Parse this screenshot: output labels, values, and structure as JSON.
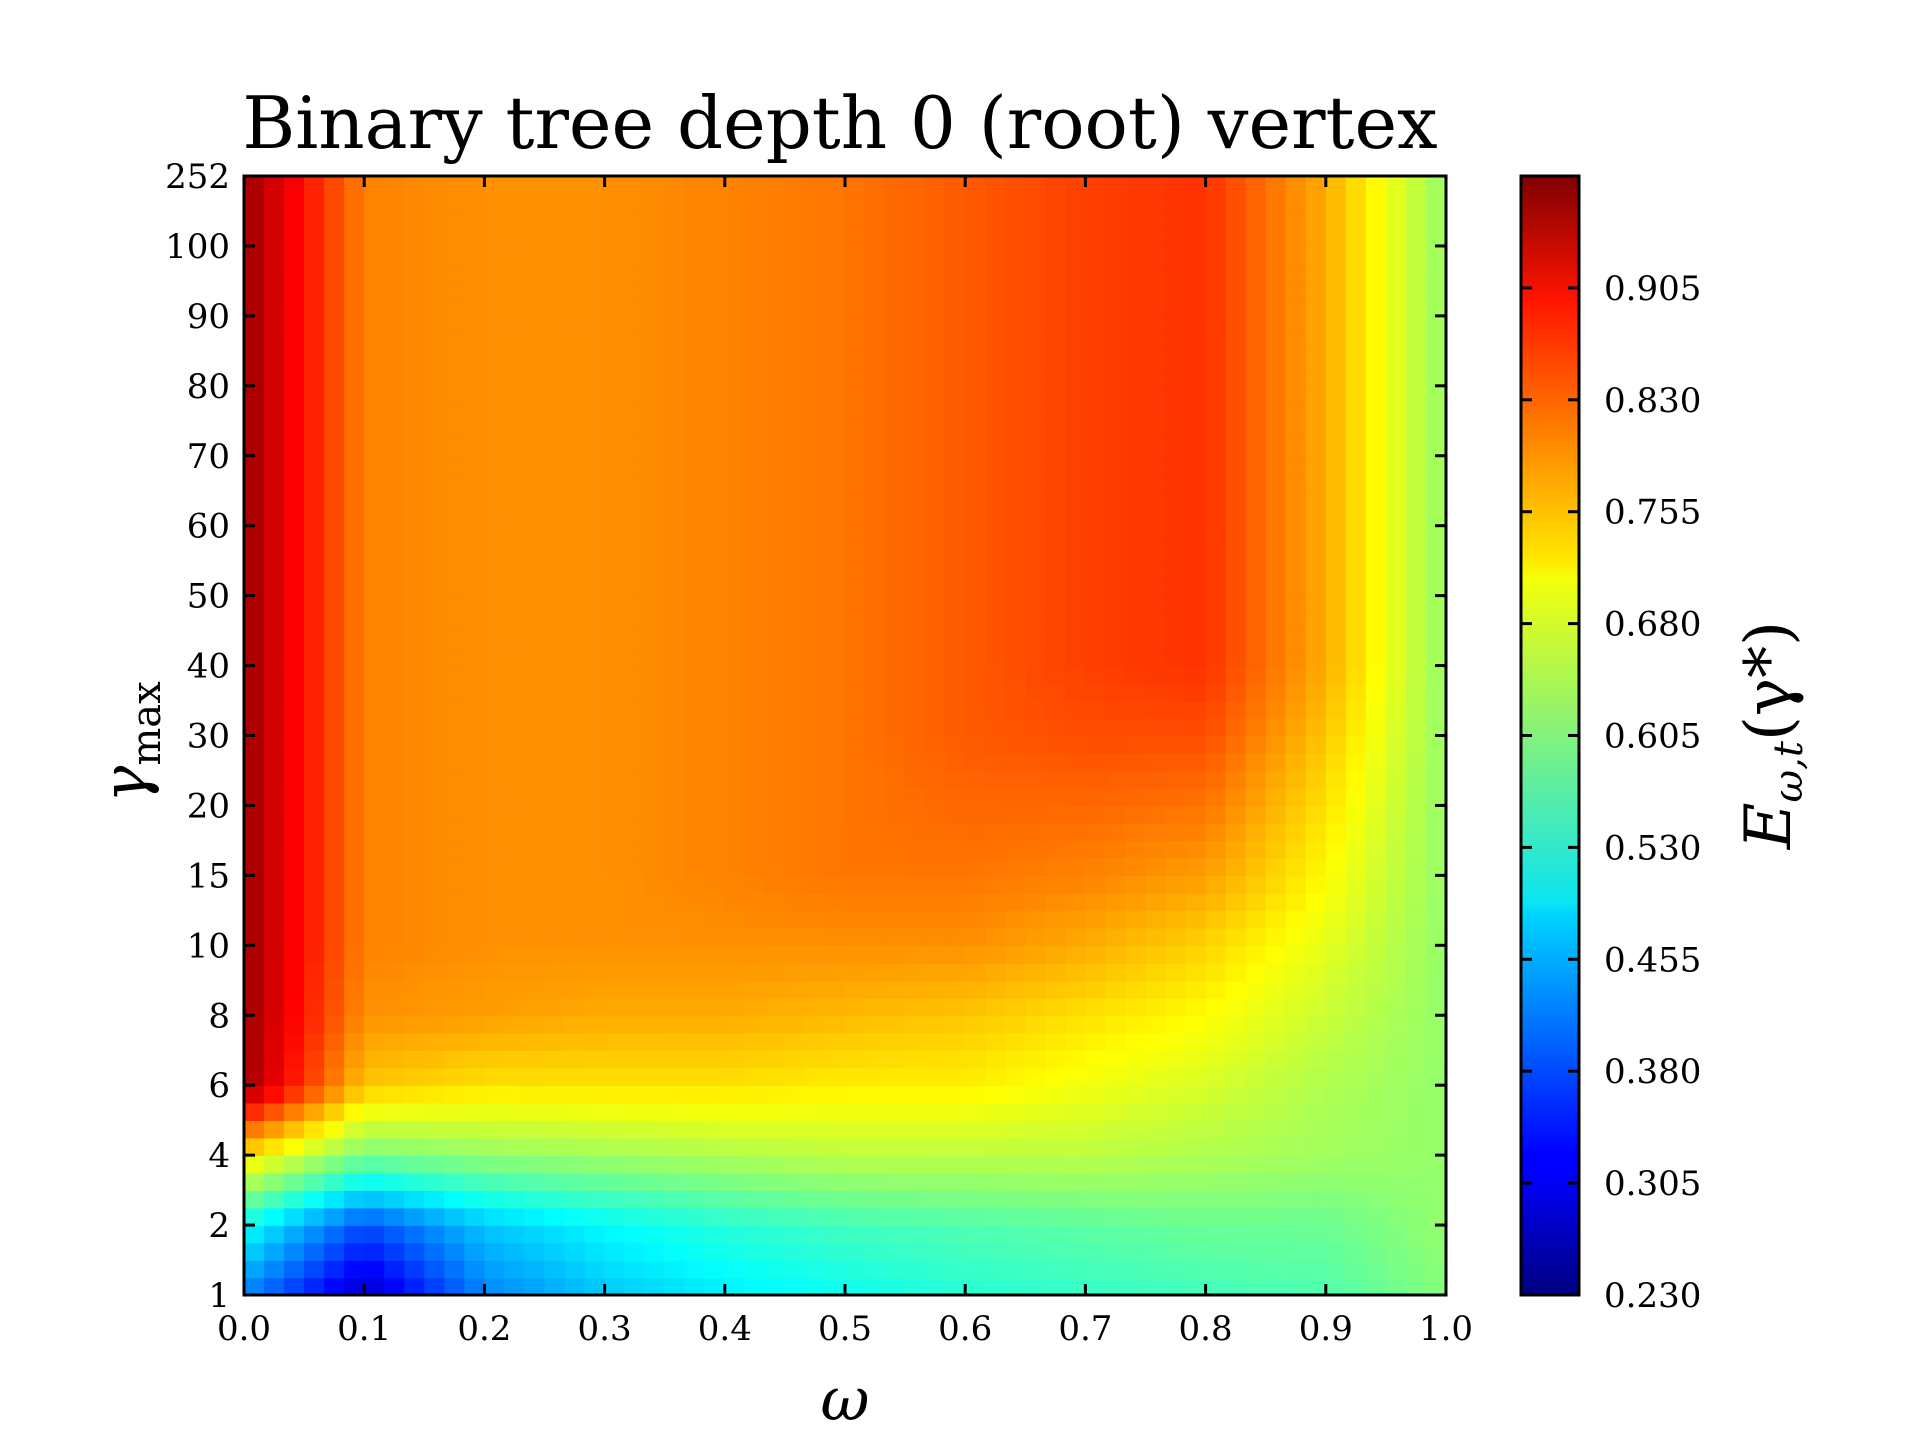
{
  "chart_data": {
    "type": "heatmap",
    "title": "Binary tree depth 0 (root) vertex",
    "xlabel": "ω",
    "ylabel_main": "γ",
    "ylabel_sub": "max",
    "colorbar_label_main": "E",
    "colorbar_label_sub": "ω,t",
    "colorbar_label_arg": "(γ*)",
    "colormap": "jet",
    "x_ticks": [
      "0.0",
      "0.1",
      "0.2",
      "0.3",
      "0.4",
      "0.5",
      "0.6",
      "0.7",
      "0.8",
      "0.9",
      "1.0"
    ],
    "y_ticks": [
      "1",
      "2",
      "4",
      "6",
      "8",
      "10",
      "15",
      "20",
      "30",
      "40",
      "50",
      "60",
      "70",
      "80",
      "90",
      "100",
      "252"
    ],
    "colorbar_ticks": [
      "0.230",
      "0.305",
      "0.380",
      "0.455",
      "0.530",
      "0.605",
      "0.680",
      "0.755",
      "0.830",
      "0.905"
    ],
    "colorbar_range": [
      0.23,
      0.98
    ],
    "omega": [
      0.0,
      0.1,
      0.2,
      0.3,
      0.4,
      0.5,
      0.6,
      0.7,
      0.8,
      0.9,
      1.0
    ],
    "gamma_max": [
      1,
      2,
      4,
      6,
      8,
      10,
      15,
      20,
      30,
      40,
      50,
      60,
      70,
      80,
      90,
      100,
      252
    ],
    "values": [
      [
        0.42,
        0.28,
        0.42,
        0.47,
        0.5,
        0.52,
        0.54,
        0.55,
        0.56,
        0.57,
        0.61
      ],
      [
        0.52,
        0.38,
        0.47,
        0.51,
        0.54,
        0.56,
        0.57,
        0.58,
        0.59,
        0.59,
        0.62
      ],
      [
        0.72,
        0.6,
        0.62,
        0.63,
        0.64,
        0.65,
        0.65,
        0.65,
        0.64,
        0.63,
        0.62
      ],
      [
        0.96,
        0.74,
        0.72,
        0.72,
        0.72,
        0.71,
        0.71,
        0.69,
        0.67,
        0.64,
        0.62
      ],
      [
        0.96,
        0.78,
        0.77,
        0.76,
        0.76,
        0.75,
        0.74,
        0.72,
        0.7,
        0.66,
        0.62
      ],
      [
        0.96,
        0.79,
        0.78,
        0.78,
        0.78,
        0.78,
        0.78,
        0.76,
        0.73,
        0.68,
        0.62
      ],
      [
        0.96,
        0.79,
        0.78,
        0.78,
        0.79,
        0.8,
        0.8,
        0.79,
        0.77,
        0.7,
        0.62
      ],
      [
        0.96,
        0.79,
        0.78,
        0.78,
        0.79,
        0.8,
        0.81,
        0.81,
        0.8,
        0.72,
        0.62
      ],
      [
        0.96,
        0.79,
        0.78,
        0.78,
        0.79,
        0.8,
        0.82,
        0.83,
        0.83,
        0.74,
        0.62
      ],
      [
        0.96,
        0.79,
        0.78,
        0.78,
        0.79,
        0.8,
        0.82,
        0.84,
        0.85,
        0.76,
        0.62
      ],
      [
        0.96,
        0.79,
        0.78,
        0.78,
        0.79,
        0.8,
        0.82,
        0.84,
        0.85,
        0.76,
        0.62
      ],
      [
        0.96,
        0.79,
        0.78,
        0.78,
        0.79,
        0.8,
        0.82,
        0.84,
        0.85,
        0.76,
        0.62
      ],
      [
        0.96,
        0.79,
        0.78,
        0.78,
        0.79,
        0.8,
        0.82,
        0.84,
        0.85,
        0.76,
        0.62
      ],
      [
        0.96,
        0.79,
        0.78,
        0.78,
        0.79,
        0.8,
        0.82,
        0.84,
        0.85,
        0.76,
        0.62
      ],
      [
        0.96,
        0.79,
        0.78,
        0.78,
        0.79,
        0.8,
        0.82,
        0.84,
        0.85,
        0.76,
        0.62
      ],
      [
        0.96,
        0.79,
        0.78,
        0.78,
        0.79,
        0.8,
        0.82,
        0.84,
        0.85,
        0.76,
        0.62
      ],
      [
        0.96,
        0.79,
        0.78,
        0.78,
        0.79,
        0.8,
        0.82,
        0.84,
        0.85,
        0.76,
        0.62
      ]
    ],
    "grid": false,
    "legend": "colorbar-right"
  }
}
